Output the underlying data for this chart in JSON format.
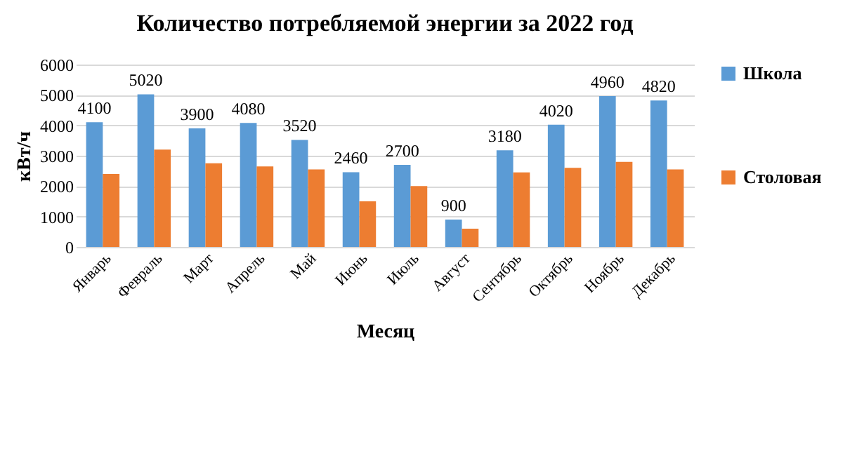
{
  "chart_data": {
    "type": "bar",
    "title": "Количество потребляемой энергии за 2022 год",
    "xlabel": "Месяц",
    "ylabel": "кВт/ч",
    "categories": [
      "Январь",
      "Февраль",
      "Март",
      "Апрель",
      "Май",
      "Июнь",
      "Июль",
      "Август",
      "Сентябрь",
      "Октябрь",
      "Ноябрь",
      "Декабрь"
    ],
    "series": [
      {
        "name": "Школа",
        "color": "#5b9bd5",
        "values": [
          4100,
          5020,
          3900,
          4080,
          3520,
          2460,
          2700,
          900,
          3180,
          4020,
          4960,
          4820
        ],
        "value_labels": [
          "4100",
          "5020",
          "3900",
          "4080",
          "3520",
          "2460",
          "2700",
          "900",
          "3180",
          "4020",
          "4960",
          "4820"
        ]
      },
      {
        "name": "Столовая",
        "color": "#ed7d31",
        "values": [
          2400,
          3200,
          2750,
          2650,
          2550,
          1500,
          2000,
          600,
          2450,
          2600,
          2800,
          2550
        ]
      }
    ],
    "ylim": [
      0,
      6000
    ],
    "yticks": [
      0,
      1000,
      2000,
      3000,
      4000,
      5000,
      6000
    ],
    "grid": "y",
    "legend": "right"
  }
}
